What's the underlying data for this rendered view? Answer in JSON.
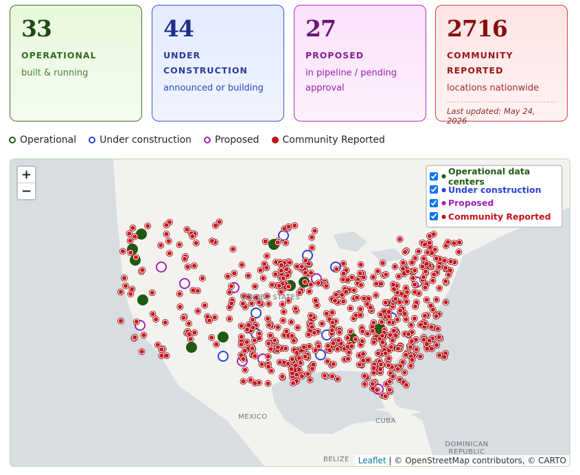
{
  "cards": [
    {
      "value": 33,
      "label": "OPERATIONAL",
      "subtitle": "built & running"
    },
    {
      "value": 44,
      "label": "UNDER CONSTRUCTION",
      "subtitle": "announced or building"
    },
    {
      "value": 27,
      "label": "PROPOSED",
      "subtitle": "in pipeline / pending approval"
    },
    {
      "value": 2716,
      "label": "COMMUNITY REPORTED",
      "subtitle": "locations nationwide",
      "note": "Last updated: May 24, 2026"
    }
  ],
  "legend": [
    "Operational",
    "Under construction",
    "Proposed",
    "Community Reported"
  ],
  "map": {
    "zoom_in": "+",
    "zoom_out": "−",
    "layers": [
      "Operational data centers",
      "Under construction",
      "Proposed",
      "Community Reported"
    ],
    "labels": [
      "UNITED STATES",
      "MEXICO",
      "CUBA",
      "DOMINICAN REPUBLIC",
      "BELIZE"
    ],
    "attribution": {
      "link": "Leaflet",
      "text": "| © OpenStreetMap contributors, © CARTO"
    }
  }
}
